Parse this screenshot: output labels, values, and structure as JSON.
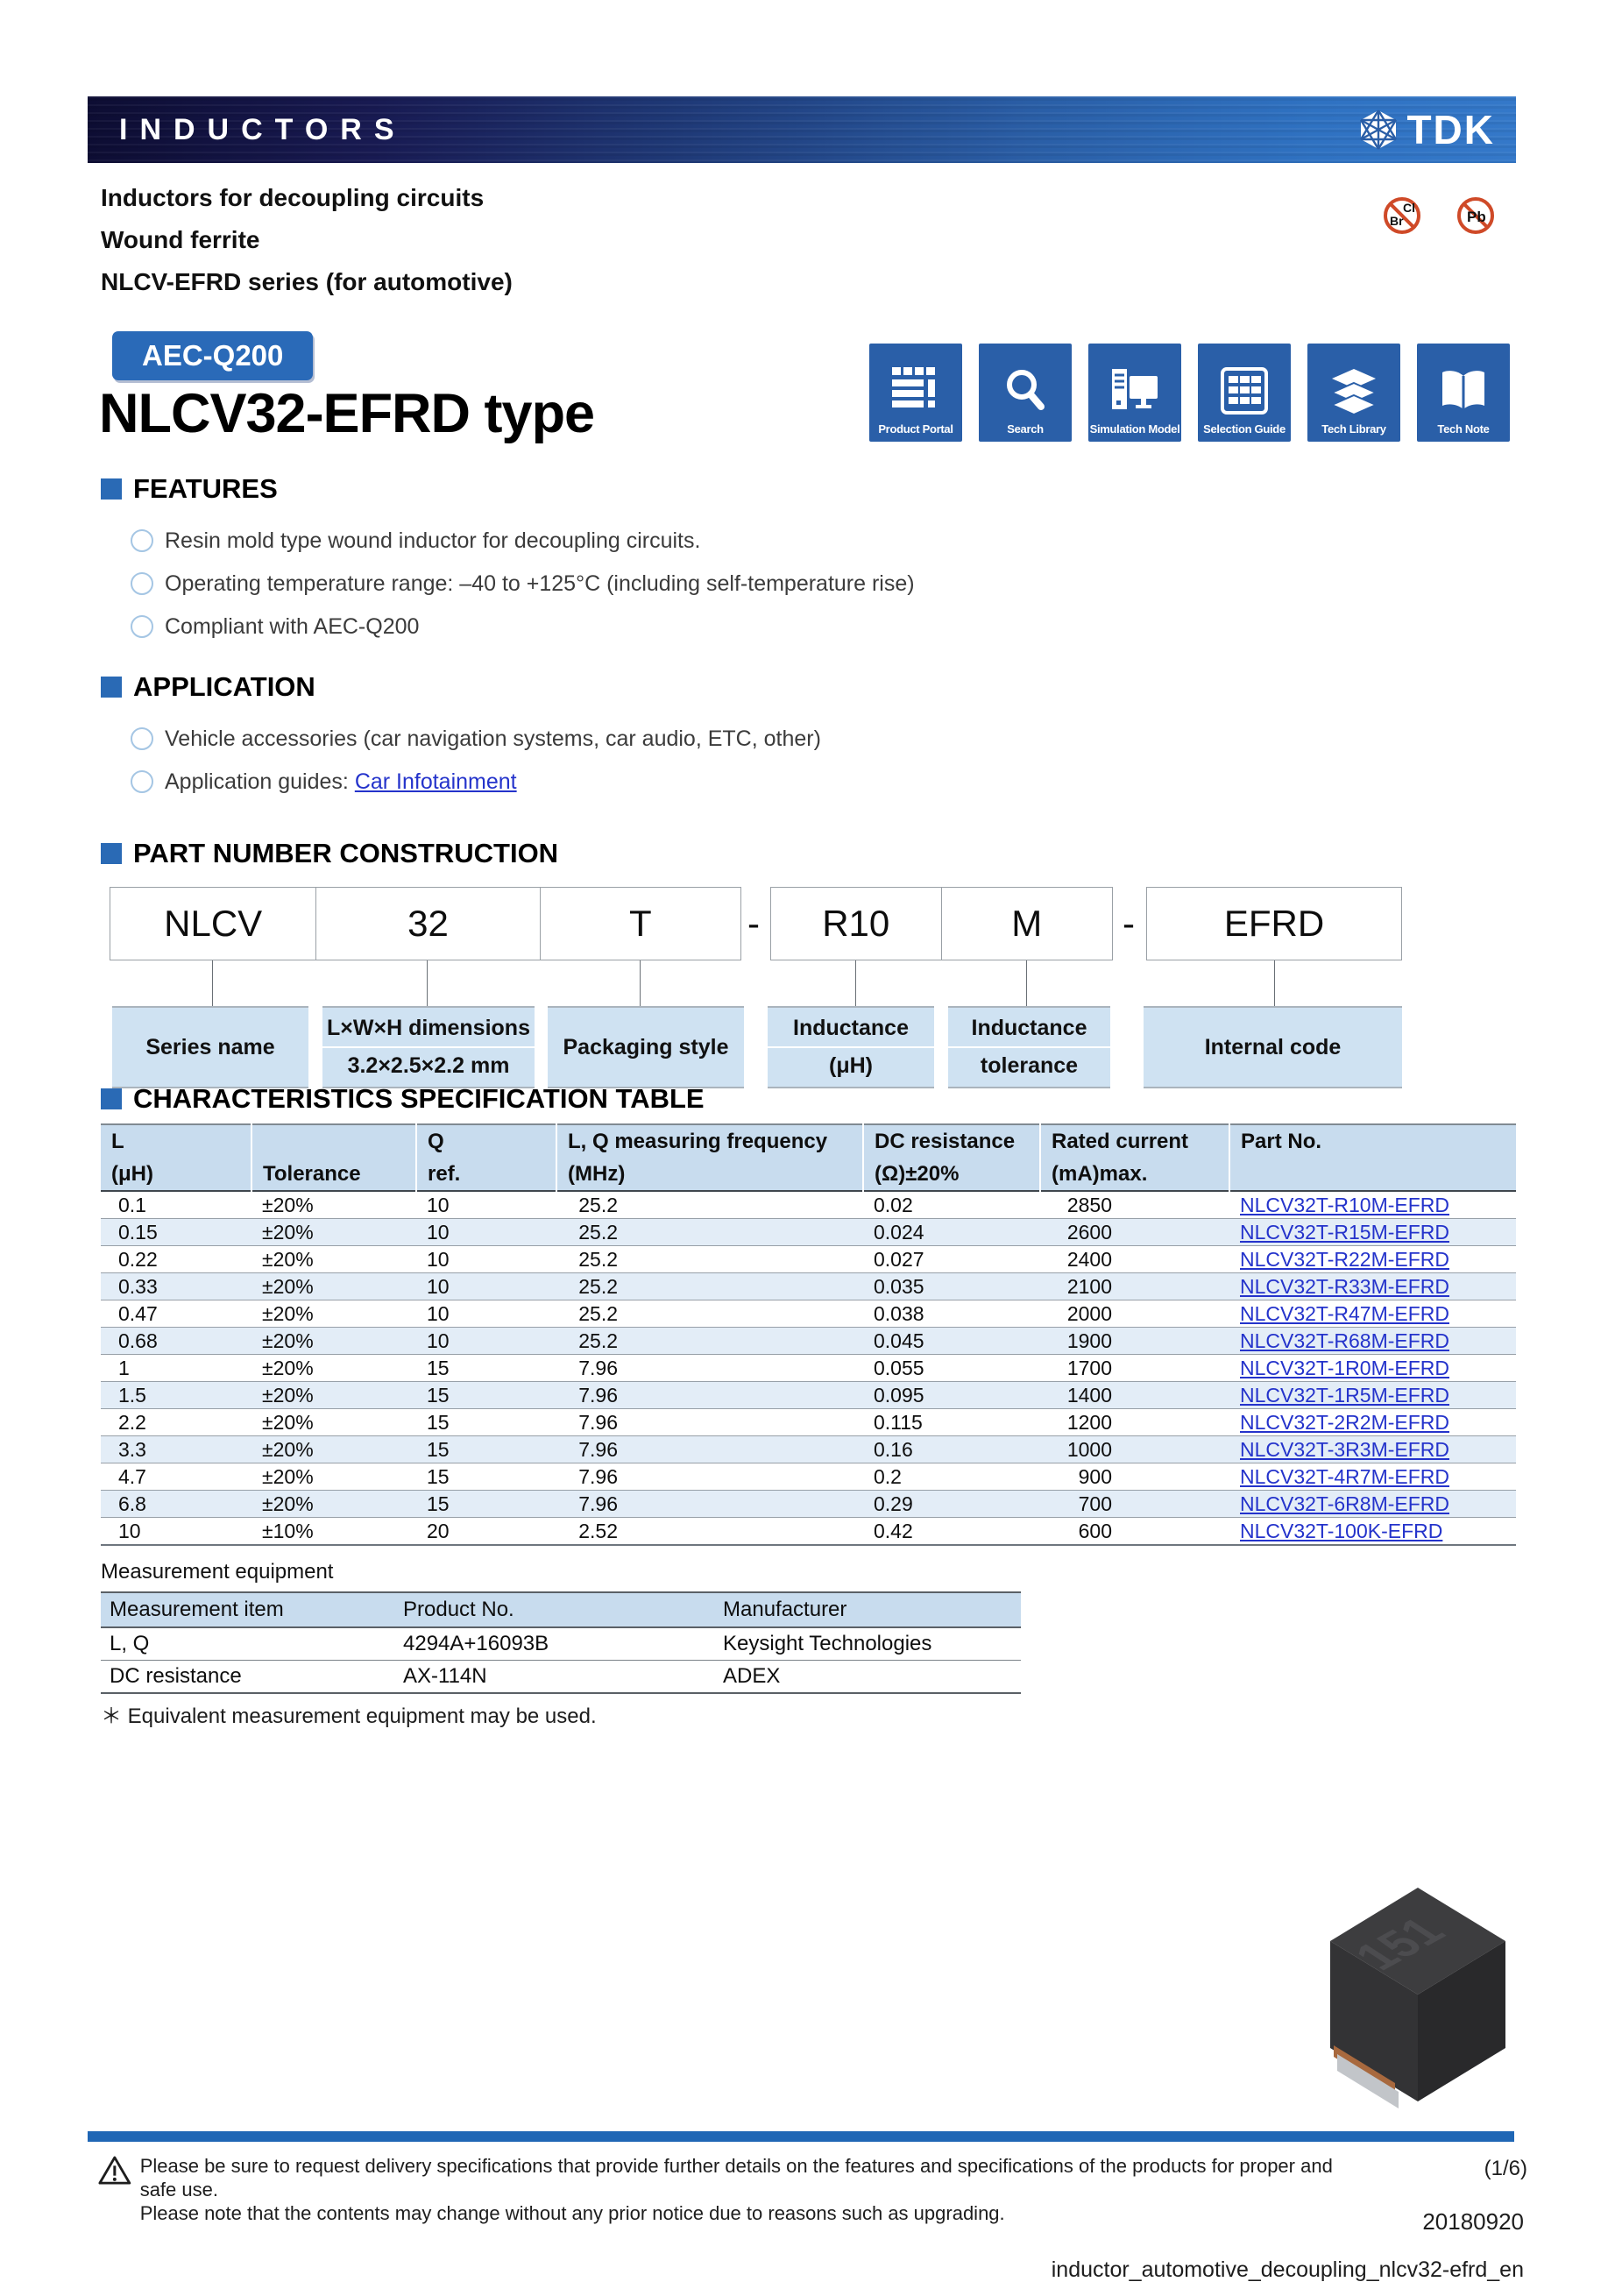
{
  "header": {
    "bar_title": "INDUCTORS",
    "brand": "TDK"
  },
  "subtitle_lines": {
    "0": "Inductors for decoupling circuits",
    "1": "Wound ferrite",
    "2": "NLCV-EFRD series (for automotive)"
  },
  "compliance_icons": {
    "halogen": {
      "top": "Cl",
      "bottom": "Br"
    },
    "lead": {
      "label": "Pb"
    }
  },
  "badge": "AEC-Q200",
  "page_title": "NLCV32-EFRD type",
  "quick_links": [
    {
      "label": "Product Portal"
    },
    {
      "label": "Search"
    },
    {
      "label": "Simulation Model"
    },
    {
      "label": "Selection Guide"
    },
    {
      "label": "Tech Library"
    },
    {
      "label": "Tech Note"
    }
  ],
  "features": {
    "heading": "FEATURES",
    "items": {
      "0": "Resin mold type wound inductor for decoupling circuits.",
      "1": "Operating temperature range: –40 to +125°C (including self-temperature rise)",
      "2": "Compliant with AEC-Q200"
    }
  },
  "application": {
    "heading": "APPLICATION",
    "item1": "Vehicle accessories (car navigation systems, car audio, ETC, other)",
    "item2_prefix": "Application guides: ",
    "item2_link": "Car Infotainment"
  },
  "part_number": {
    "heading": "PART NUMBER CONSTRUCTION",
    "separator": "-",
    "segments": {
      "s1": "NLCV",
      "s2": "32",
      "s3": "T",
      "s4": "R10",
      "s5": "M",
      "s6": "EFRD"
    },
    "labels": {
      "series": "Series name",
      "dim1": "L×W×H dimensions",
      "dim2": "3.2×2.5×2.2 mm",
      "packaging": "Packaging style",
      "ind1": "Inductance",
      "ind2": "(μH)",
      "tol1": "Inductance",
      "tol2": "tolerance",
      "internal": "Internal code"
    }
  },
  "spec_table": {
    "heading": "CHARACTERISTICS SPECIFICATION TABLE",
    "col_head_top": {
      "0": "L",
      "1": "",
      "2": "Q",
      "3": "L, Q measuring frequency",
      "4": "DC resistance",
      "5": "Rated current",
      "6": "Part No."
    },
    "col_head_bottom": {
      "0": "(μH)",
      "1": "Tolerance",
      "2": "ref.",
      "3": "(MHz)",
      "4": "(Ω)±20%",
      "5": "(mA)max.",
      "6": ""
    },
    "rows": [
      [
        "0.1",
        "±20%",
        "10",
        "25.2",
        "0.02",
        "2850",
        "NLCV32T-R10M-EFRD"
      ],
      [
        "0.15",
        "±20%",
        "10",
        "25.2",
        "0.024",
        "2600",
        "NLCV32T-R15M-EFRD"
      ],
      [
        "0.22",
        "±20%",
        "10",
        "25.2",
        "0.027",
        "2400",
        "NLCV32T-R22M-EFRD"
      ],
      [
        "0.33",
        "±20%",
        "10",
        "25.2",
        "0.035",
        "2100",
        "NLCV32T-R33M-EFRD"
      ],
      [
        "0.47",
        "±20%",
        "10",
        "25.2",
        "0.038",
        "2000",
        "NLCV32T-R47M-EFRD"
      ],
      [
        "0.68",
        "±20%",
        "10",
        "25.2",
        "0.045",
        "1900",
        "NLCV32T-R68M-EFRD"
      ],
      [
        "1",
        "±20%",
        "15",
        "7.96",
        "0.055",
        "1700",
        "NLCV32T-1R0M-EFRD"
      ],
      [
        "1.5",
        "±20%",
        "15",
        "7.96",
        "0.095",
        "1400",
        "NLCV32T-1R5M-EFRD"
      ],
      [
        "2.2",
        "±20%",
        "15",
        "7.96",
        "0.115",
        "1200",
        "NLCV32T-2R2M-EFRD"
      ],
      [
        "3.3",
        "±20%",
        "15",
        "7.96",
        "0.16",
        "1000",
        "NLCV32T-3R3M-EFRD"
      ],
      [
        "4.7",
        "±20%",
        "15",
        "7.96",
        "0.2",
        "900",
        "NLCV32T-4R7M-EFRD"
      ],
      [
        "6.8",
        "±20%",
        "15",
        "7.96",
        "0.29",
        "700",
        "NLCV32T-6R8M-EFRD"
      ],
      [
        "10",
        "±10%",
        "20",
        "2.52",
        "0.42",
        "600",
        "NLCV32T-100K-EFRD"
      ]
    ]
  },
  "measurement": {
    "title": "Measurement equipment",
    "headers": {
      "0": "Measurement item",
      "1": "Product No.",
      "2": "Manufacturer"
    },
    "rows": [
      [
        "L, Q",
        "4294A+16093B",
        "Keysight Technologies"
      ],
      [
        "DC resistance",
        "AX-114N",
        "ADEX"
      ]
    ],
    "note": "＊ Equivalent measurement equipment may be used."
  },
  "product_photo": {
    "marking": "151"
  },
  "footer": {
    "line1": "Please be sure to request delivery specifications that provide further details on the features and specifications of the products for proper and safe use.",
    "line2": "Please note that the contents may change without any prior notice due to reasons such as upgrading.",
    "page": "(1/6)",
    "date": "20180920",
    "doc_id": "inductor_automotive_decoupling_nlcv32-efrd_en"
  },
  "colors": {
    "accent": "#2a64ae",
    "link": "#2433cb",
    "table_header_bg": "#c8dcee",
    "row_alt": "#e3edf7",
    "label_box": "#cfe2f2",
    "footer_bar": "#1f66b5"
  }
}
